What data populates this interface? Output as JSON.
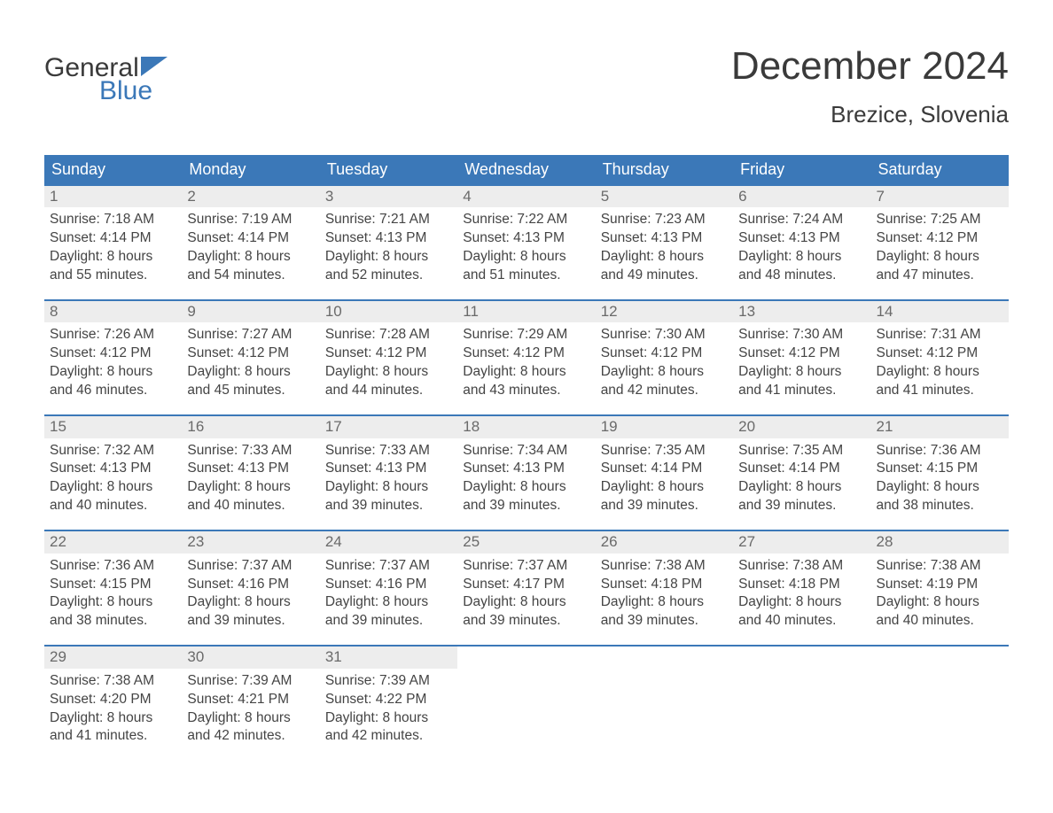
{
  "colors": {
    "brand_blue": "#3b78b8",
    "header_bg": "#3b78b8",
    "header_text": "#ffffff",
    "daynum_bg": "#ededed",
    "daynum_text": "#6a6a6a",
    "body_text": "#444444",
    "title_text": "#3a3a3a",
    "page_bg": "#ffffff"
  },
  "logo": {
    "word1": "General",
    "word2": "Blue"
  },
  "title": "December 2024",
  "location": "Brezice, Slovenia",
  "weekday_headers": [
    "Sunday",
    "Monday",
    "Tuesday",
    "Wednesday",
    "Thursday",
    "Friday",
    "Saturday"
  ],
  "weeks": [
    [
      {
        "n": "1",
        "sunrise": "Sunrise: 7:18 AM",
        "sunset": "Sunset: 4:14 PM",
        "d1": "Daylight: 8 hours",
        "d2": "and 55 minutes."
      },
      {
        "n": "2",
        "sunrise": "Sunrise: 7:19 AM",
        "sunset": "Sunset: 4:14 PM",
        "d1": "Daylight: 8 hours",
        "d2": "and 54 minutes."
      },
      {
        "n": "3",
        "sunrise": "Sunrise: 7:21 AM",
        "sunset": "Sunset: 4:13 PM",
        "d1": "Daylight: 8 hours",
        "d2": "and 52 minutes."
      },
      {
        "n": "4",
        "sunrise": "Sunrise: 7:22 AM",
        "sunset": "Sunset: 4:13 PM",
        "d1": "Daylight: 8 hours",
        "d2": "and 51 minutes."
      },
      {
        "n": "5",
        "sunrise": "Sunrise: 7:23 AM",
        "sunset": "Sunset: 4:13 PM",
        "d1": "Daylight: 8 hours",
        "d2": "and 49 minutes."
      },
      {
        "n": "6",
        "sunrise": "Sunrise: 7:24 AM",
        "sunset": "Sunset: 4:13 PM",
        "d1": "Daylight: 8 hours",
        "d2": "and 48 minutes."
      },
      {
        "n": "7",
        "sunrise": "Sunrise: 7:25 AM",
        "sunset": "Sunset: 4:12 PM",
        "d1": "Daylight: 8 hours",
        "d2": "and 47 minutes."
      }
    ],
    [
      {
        "n": "8",
        "sunrise": "Sunrise: 7:26 AM",
        "sunset": "Sunset: 4:12 PM",
        "d1": "Daylight: 8 hours",
        "d2": "and 46 minutes."
      },
      {
        "n": "9",
        "sunrise": "Sunrise: 7:27 AM",
        "sunset": "Sunset: 4:12 PM",
        "d1": "Daylight: 8 hours",
        "d2": "and 45 minutes."
      },
      {
        "n": "10",
        "sunrise": "Sunrise: 7:28 AM",
        "sunset": "Sunset: 4:12 PM",
        "d1": "Daylight: 8 hours",
        "d2": "and 44 minutes."
      },
      {
        "n": "11",
        "sunrise": "Sunrise: 7:29 AM",
        "sunset": "Sunset: 4:12 PM",
        "d1": "Daylight: 8 hours",
        "d2": "and 43 minutes."
      },
      {
        "n": "12",
        "sunrise": "Sunrise: 7:30 AM",
        "sunset": "Sunset: 4:12 PM",
        "d1": "Daylight: 8 hours",
        "d2": "and 42 minutes."
      },
      {
        "n": "13",
        "sunrise": "Sunrise: 7:30 AM",
        "sunset": "Sunset: 4:12 PM",
        "d1": "Daylight: 8 hours",
        "d2": "and 41 minutes."
      },
      {
        "n": "14",
        "sunrise": "Sunrise: 7:31 AM",
        "sunset": "Sunset: 4:12 PM",
        "d1": "Daylight: 8 hours",
        "d2": "and 41 minutes."
      }
    ],
    [
      {
        "n": "15",
        "sunrise": "Sunrise: 7:32 AM",
        "sunset": "Sunset: 4:13 PM",
        "d1": "Daylight: 8 hours",
        "d2": "and 40 minutes."
      },
      {
        "n": "16",
        "sunrise": "Sunrise: 7:33 AM",
        "sunset": "Sunset: 4:13 PM",
        "d1": "Daylight: 8 hours",
        "d2": "and 40 minutes."
      },
      {
        "n": "17",
        "sunrise": "Sunrise: 7:33 AM",
        "sunset": "Sunset: 4:13 PM",
        "d1": "Daylight: 8 hours",
        "d2": "and 39 minutes."
      },
      {
        "n": "18",
        "sunrise": "Sunrise: 7:34 AM",
        "sunset": "Sunset: 4:13 PM",
        "d1": "Daylight: 8 hours",
        "d2": "and 39 minutes."
      },
      {
        "n": "19",
        "sunrise": "Sunrise: 7:35 AM",
        "sunset": "Sunset: 4:14 PM",
        "d1": "Daylight: 8 hours",
        "d2": "and 39 minutes."
      },
      {
        "n": "20",
        "sunrise": "Sunrise: 7:35 AM",
        "sunset": "Sunset: 4:14 PM",
        "d1": "Daylight: 8 hours",
        "d2": "and 39 minutes."
      },
      {
        "n": "21",
        "sunrise": "Sunrise: 7:36 AM",
        "sunset": "Sunset: 4:15 PM",
        "d1": "Daylight: 8 hours",
        "d2": "and 38 minutes."
      }
    ],
    [
      {
        "n": "22",
        "sunrise": "Sunrise: 7:36 AM",
        "sunset": "Sunset: 4:15 PM",
        "d1": "Daylight: 8 hours",
        "d2": "and 38 minutes."
      },
      {
        "n": "23",
        "sunrise": "Sunrise: 7:37 AM",
        "sunset": "Sunset: 4:16 PM",
        "d1": "Daylight: 8 hours",
        "d2": "and 39 minutes."
      },
      {
        "n": "24",
        "sunrise": "Sunrise: 7:37 AM",
        "sunset": "Sunset: 4:16 PM",
        "d1": "Daylight: 8 hours",
        "d2": "and 39 minutes."
      },
      {
        "n": "25",
        "sunrise": "Sunrise: 7:37 AM",
        "sunset": "Sunset: 4:17 PM",
        "d1": "Daylight: 8 hours",
        "d2": "and 39 minutes."
      },
      {
        "n": "26",
        "sunrise": "Sunrise: 7:38 AM",
        "sunset": "Sunset: 4:18 PM",
        "d1": "Daylight: 8 hours",
        "d2": "and 39 minutes."
      },
      {
        "n": "27",
        "sunrise": "Sunrise: 7:38 AM",
        "sunset": "Sunset: 4:18 PM",
        "d1": "Daylight: 8 hours",
        "d2": "and 40 minutes."
      },
      {
        "n": "28",
        "sunrise": "Sunrise: 7:38 AM",
        "sunset": "Sunset: 4:19 PM",
        "d1": "Daylight: 8 hours",
        "d2": "and 40 minutes."
      }
    ],
    [
      {
        "n": "29",
        "sunrise": "Sunrise: 7:38 AM",
        "sunset": "Sunset: 4:20 PM",
        "d1": "Daylight: 8 hours",
        "d2": "and 41 minutes."
      },
      {
        "n": "30",
        "sunrise": "Sunrise: 7:39 AM",
        "sunset": "Sunset: 4:21 PM",
        "d1": "Daylight: 8 hours",
        "d2": "and 42 minutes."
      },
      {
        "n": "31",
        "sunrise": "Sunrise: 7:39 AM",
        "sunset": "Sunset: 4:22 PM",
        "d1": "Daylight: 8 hours",
        "d2": "and 42 minutes."
      },
      null,
      null,
      null,
      null
    ]
  ]
}
